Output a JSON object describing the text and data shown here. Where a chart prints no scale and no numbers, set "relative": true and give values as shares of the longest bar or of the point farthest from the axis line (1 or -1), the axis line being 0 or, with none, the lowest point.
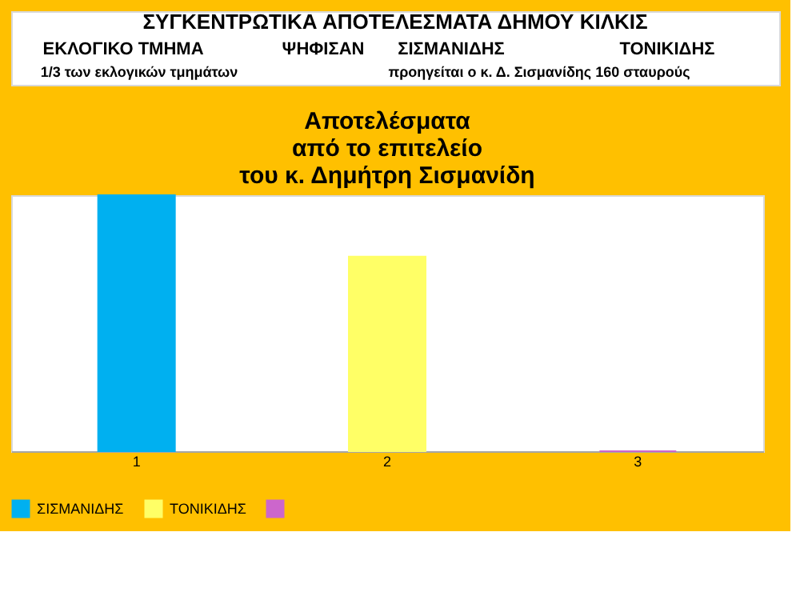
{
  "chart_data": {
    "type": "bar",
    "title": "Αποτελέσματα\nαπό το επιτελείο\nτου κ. Δημήτρη Σισμανίδη",
    "annotations": [
      "ΣΥΓΚΕΝΤΡΩΤΙΚΑ ΑΠΟΤΕΛΕΣΜΑΤΑ  ΔΗΜΟΥ ΚΙΛΚΙΣ",
      "ΕΚΛΟΓΙΚΟ  ΤΜΗΜΑ",
      "ΨΗΦΙΣΑΝ",
      "ΣΙΣΜΑΝΙΔΗΣ",
      "ΤΟΝΙΚΙΔΗΣ",
      "1/3 των εκλογικών τμημάτων",
      "προηγείται ο κ. Δ. Σισμανίδης 160 σταυρούς"
    ],
    "categories": [
      "1",
      "2",
      "3"
    ],
    "relative": true,
    "series": [
      {
        "name": "ΣΙΣΜΑΝΙΔΗΣ",
        "color": "#00b0f0",
        "values": [
          1,
          null,
          null
        ]
      },
      {
        "name": "ΤΟΝΙΚΙΔΗΣ",
        "color": "#ffff66",
        "values": [
          null,
          0.76,
          null
        ]
      },
      {
        "color": "#cc66cc",
        "values": [
          null,
          null,
          0
        ]
      }
    ],
    "grid": false,
    "legend": "bottom",
    "tick_labels": "x"
  }
}
